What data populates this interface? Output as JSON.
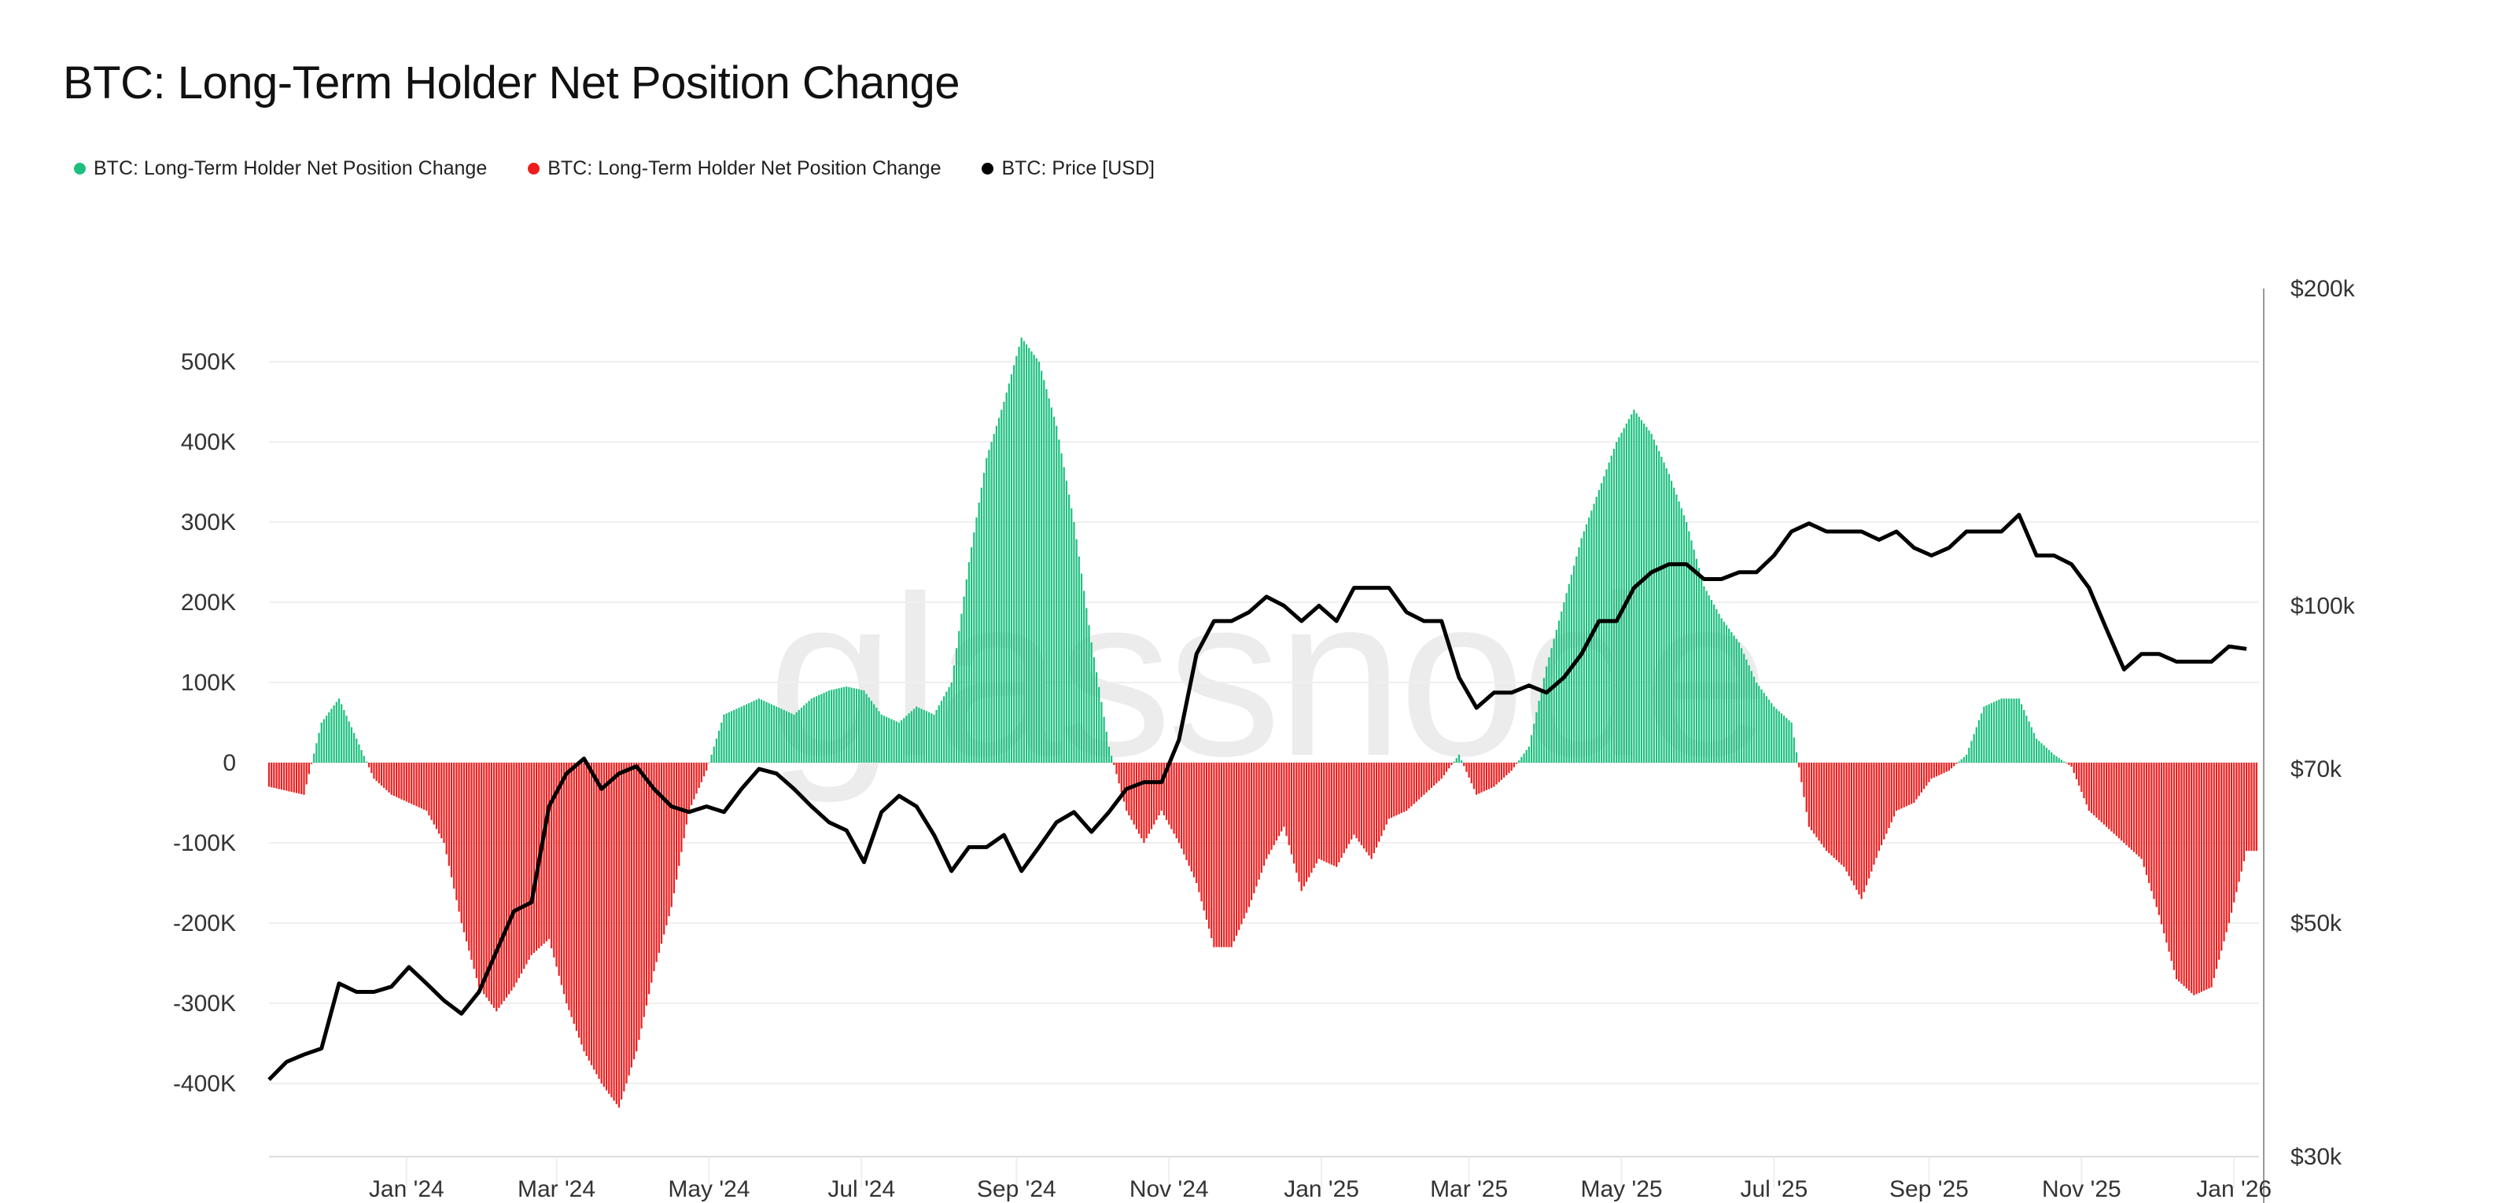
{
  "title": "BTC: Long-Term Holder Net Position Change",
  "watermark": "glassnode",
  "legend": [
    {
      "label": "BTC: Long-Term Holder Net Position Change",
      "color": "#1dbf7e"
    },
    {
      "label": "BTC: Long-Term Holder Net Position Change",
      "color": "#ee1c1c"
    },
    {
      "label": "BTC: Price [USD]",
      "color": "#000000"
    }
  ],
  "chart_data": {
    "type": "bar",
    "title": "BTC: Long-Term Holder Net Position Change",
    "xlim": [
      "2023-11-07",
      "2026-01-11"
    ],
    "x_ticks": [
      "Jan '24",
      "Mar '24",
      "May '24",
      "Jul '24",
      "Sep '24",
      "Nov '24",
      "Jan '25",
      "Mar '25",
      "May '25",
      "Jul '25",
      "Sep '25",
      "Nov '25",
      "Jan '26"
    ],
    "x_tick_dates": [
      "2024-01-01",
      "2024-03-01",
      "2024-05-01",
      "2024-07-01",
      "2024-09-01",
      "2024-11-01",
      "2025-01-01",
      "2025-03-01",
      "2025-05-01",
      "2025-07-01",
      "2025-09-01",
      "2025-11-01",
      "2026-01-01"
    ],
    "y_left": {
      "ylim": [
        -500000,
        600000
      ],
      "ticks": [
        500000,
        400000,
        300000,
        200000,
        100000,
        0,
        -100000,
        -200000,
        -300000,
        -400000
      ],
      "tick_labels": [
        "500K",
        "400K",
        "300K",
        "200K",
        "100K",
        "0",
        "-100K",
        "-200K",
        "-300K",
        "-400K"
      ],
      "grid": true
    },
    "y_right": {
      "scale": "log",
      "ylim": [
        30000,
        200000
      ],
      "ticks": [
        200000,
        100000,
        70000,
        50000,
        30000
      ],
      "tick_labels": [
        "$200k",
        "$100k",
        "$70k",
        "$50k",
        "$30k"
      ]
    },
    "positive_color": "#1dbf7e",
    "negative_color": "#ee1c1c",
    "price_color": "#000000",
    "dates": [
      "2023-11-07",
      "2023-11-14",
      "2023-11-21",
      "2023-11-28",
      "2023-12-05",
      "2023-12-12",
      "2023-12-19",
      "2023-12-26",
      "2024-01-02",
      "2024-01-09",
      "2024-01-16",
      "2024-01-23",
      "2024-01-30",
      "2024-02-06",
      "2024-02-13",
      "2024-02-20",
      "2024-02-27",
      "2024-03-05",
      "2024-03-12",
      "2024-03-19",
      "2024-03-26",
      "2024-04-02",
      "2024-04-09",
      "2024-04-16",
      "2024-04-23",
      "2024-04-30",
      "2024-05-07",
      "2024-05-14",
      "2024-05-21",
      "2024-05-28",
      "2024-06-04",
      "2024-06-11",
      "2024-06-18",
      "2024-06-25",
      "2024-07-02",
      "2024-07-09",
      "2024-07-16",
      "2024-07-23",
      "2024-07-30",
      "2024-08-06",
      "2024-08-13",
      "2024-08-20",
      "2024-08-27",
      "2024-09-03",
      "2024-09-10",
      "2024-09-17",
      "2024-09-24",
      "2024-10-01",
      "2024-10-08",
      "2024-10-15",
      "2024-10-22",
      "2024-10-29",
      "2024-11-05",
      "2024-11-12",
      "2024-11-19",
      "2024-11-26",
      "2024-12-03",
      "2024-12-10",
      "2024-12-17",
      "2024-12-24",
      "2024-12-31",
      "2025-01-07",
      "2025-01-14",
      "2025-01-21",
      "2025-01-28",
      "2025-02-04",
      "2025-02-11",
      "2025-02-18",
      "2025-02-25",
      "2025-03-04",
      "2025-03-11",
      "2025-03-18",
      "2025-03-25",
      "2025-04-01",
      "2025-04-08",
      "2025-04-15",
      "2025-04-22",
      "2025-04-29",
      "2025-05-06",
      "2025-05-13",
      "2025-05-20",
      "2025-05-27",
      "2025-06-03",
      "2025-06-10",
      "2025-06-17",
      "2025-06-24",
      "2025-07-01",
      "2025-07-08",
      "2025-07-15",
      "2025-07-22",
      "2025-07-29",
      "2025-08-05",
      "2025-08-12",
      "2025-08-19",
      "2025-08-26",
      "2025-09-02",
      "2025-09-09",
      "2025-09-16",
      "2025-09-23",
      "2025-09-30",
      "2025-10-07",
      "2025-10-14",
      "2025-10-21",
      "2025-10-28",
      "2025-11-04",
      "2025-11-11",
      "2025-11-18",
      "2025-11-25",
      "2025-12-02",
      "2025-12-09",
      "2025-12-16",
      "2025-12-23",
      "2025-12-30",
      "2026-01-06"
    ],
    "net_position_change": [
      -30000,
      -35000,
      -40000,
      50000,
      80000,
      30000,
      -20000,
      -40000,
      -50000,
      -60000,
      -100000,
      -200000,
      -280000,
      -310000,
      -280000,
      -240000,
      -220000,
      -300000,
      -360000,
      -400000,
      -430000,
      -360000,
      -260000,
      -180000,
      -60000,
      -10000,
      60000,
      70000,
      80000,
      70000,
      60000,
      80000,
      90000,
      95000,
      90000,
      60000,
      50000,
      70000,
      60000,
      100000,
      250000,
      380000,
      450000,
      530000,
      500000,
      420000,
      300000,
      150000,
      20000,
      -60000,
      -100000,
      -60000,
      -100000,
      -150000,
      -230000,
      -230000,
      -180000,
      -120000,
      -80000,
      -160000,
      -120000,
      -130000,
      -90000,
      -120000,
      -70000,
      -60000,
      -40000,
      -20000,
      10000,
      -40000,
      -30000,
      -10000,
      20000,
      120000,
      200000,
      280000,
      340000,
      400000,
      440000,
      410000,
      360000,
      300000,
      220000,
      180000,
      150000,
      100000,
      70000,
      50000,
      -80000,
      -110000,
      -130000,
      -170000,
      -110000,
      -60000,
      -50000,
      -20000,
      -10000,
      10000,
      70000,
      80000,
      80000,
      30000,
      10000,
      -5000,
      -60000,
      -80000,
      -100000,
      -120000,
      -190000,
      -270000,
      -290000,
      -280000,
      -200000,
      -110000
    ],
    "price_usd": [
      35500,
      36900,
      37500,
      38000,
      43800,
      43000,
      43000,
      43500,
      45400,
      43800,
      42200,
      41000,
      43000,
      47000,
      51300,
      52300,
      64500,
      69300,
      71600,
      67000,
      69300,
      70400,
      67000,
      64500,
      63700,
      64500,
      63700,
      67000,
      70000,
      69300,
      67000,
      64500,
      62300,
      61200,
      57100,
      63700,
      66000,
      64500,
      60600,
      56000,
      59000,
      59000,
      60600,
      56000,
      59000,
      62300,
      63700,
      61000,
      63700,
      67000,
      68000,
      68000,
      74600,
      90000,
      96700,
      96700,
      98600,
      102000,
      100000,
      96700,
      100000,
      96700,
      104000,
      104000,
      104000,
      98600,
      96700,
      96700,
      85500,
      80000,
      82700,
      82700,
      84000,
      82700,
      85500,
      90000,
      96700,
      96700,
      104000,
      107600,
      109500,
      109500,
      106000,
      106000,
      107600,
      107600,
      111600,
      117600,
      119700,
      117600,
      117600,
      117600,
      115500,
      117600,
      113500,
      111600,
      113500,
      117600,
      117600,
      117600,
      122000,
      111600,
      111600,
      109500,
      104000,
      95000,
      87000,
      90000,
      90000,
      88500,
      88500,
      88500,
      91500,
      91000
    ]
  }
}
